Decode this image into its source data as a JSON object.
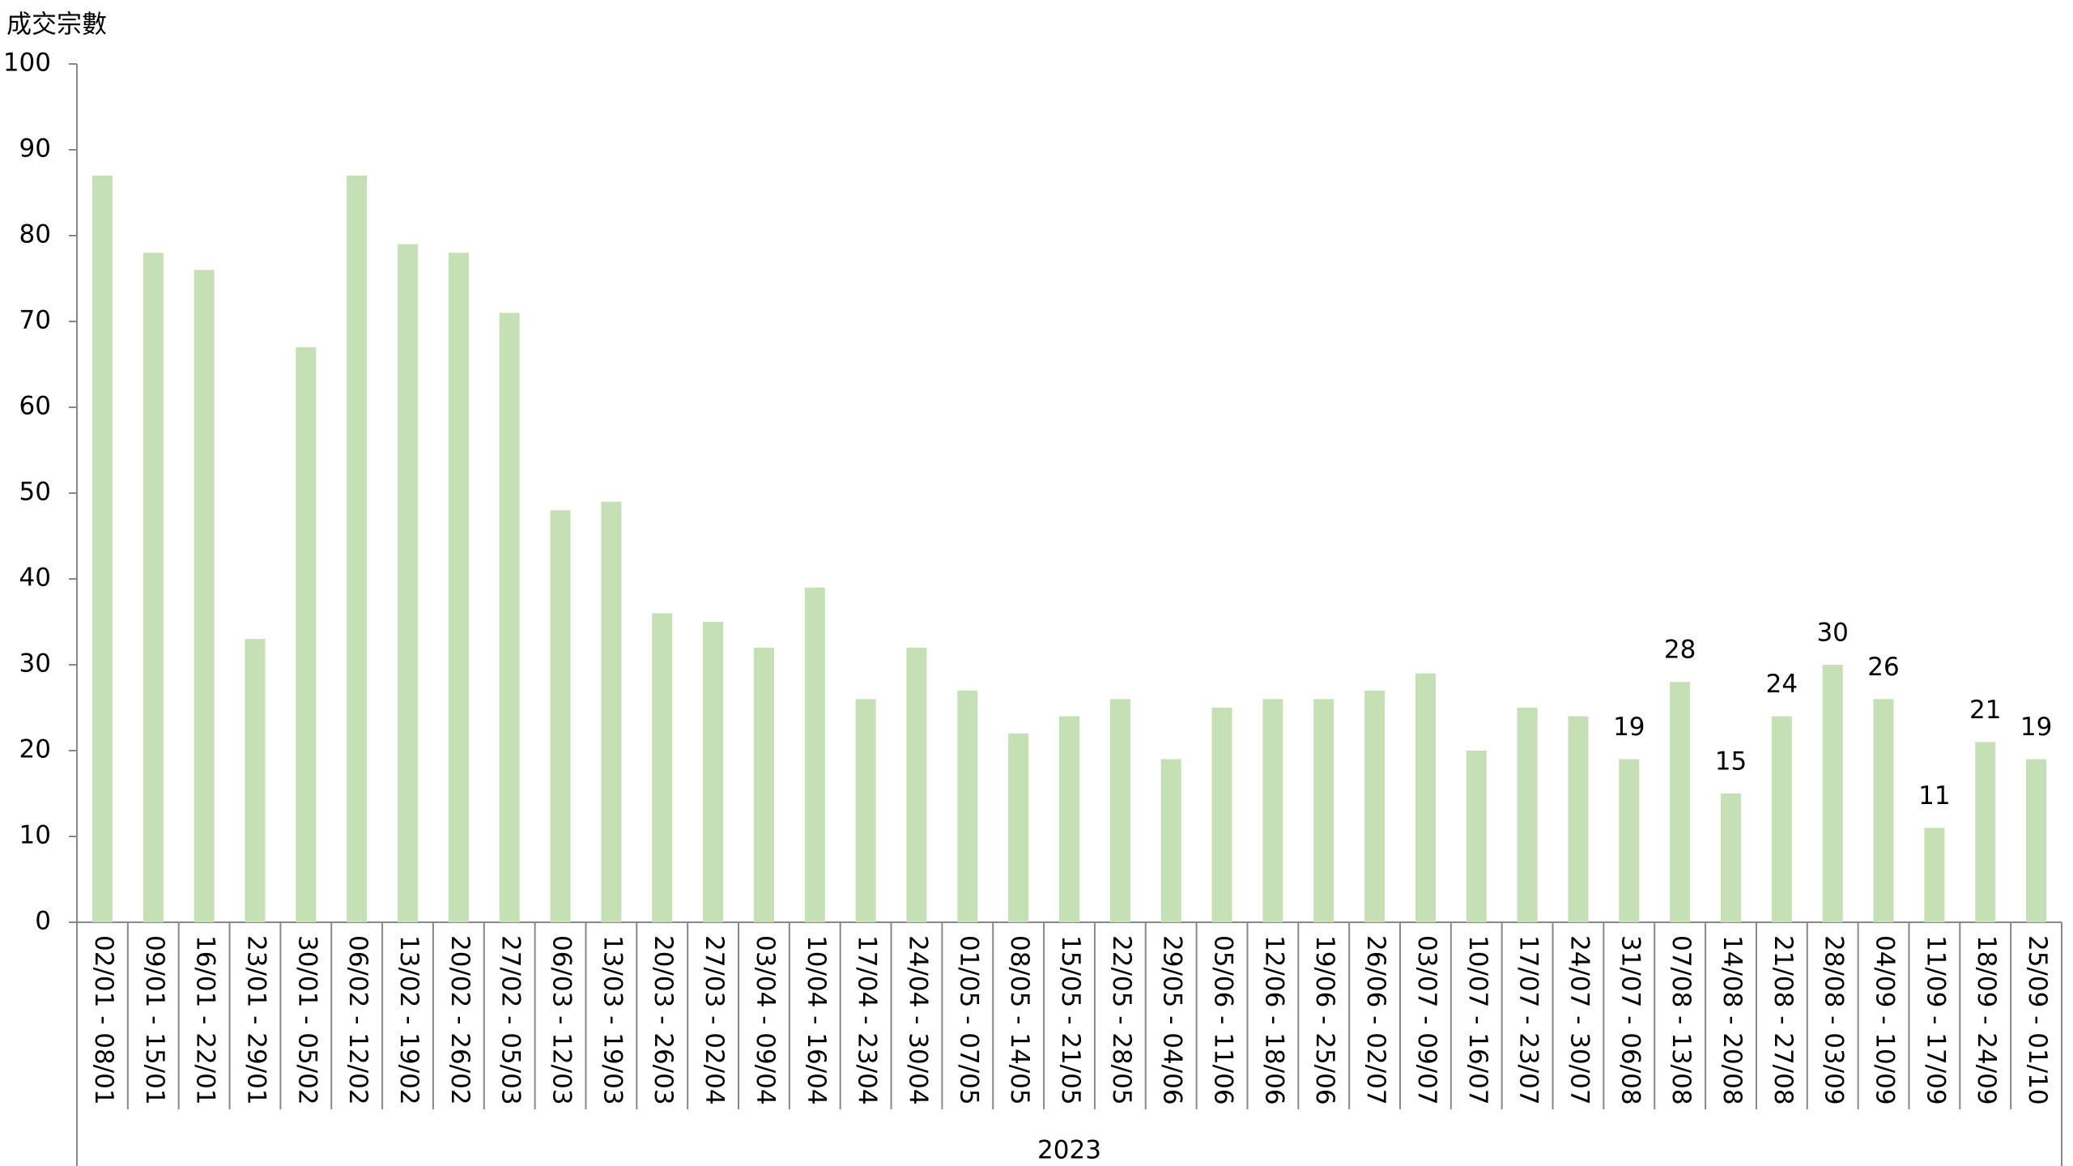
{
  "chart_data": {
    "type": "bar",
    "y_axis_label": "成交宗數",
    "x_group_label": "2023",
    "categories": [
      "02/01 - 08/01",
      "09/01 - 15/01",
      "16/01 - 22/01",
      "23/01 - 29/01",
      "30/01 - 05/02",
      "06/02 - 12/02",
      "13/02 - 19/02",
      "20/02 - 26/02",
      "27/02 - 05/03",
      "06/03 - 12/03",
      "13/03 - 19/03",
      "20/03 - 26/03",
      "27/03 - 02/04",
      "03/04 - 09/04",
      "10/04 - 16/04",
      "17/04 - 23/04",
      "24/04 - 30/04",
      "01/05 - 07/05",
      "08/05 - 14/05",
      "15/05 - 21/05",
      "22/05 - 28/05",
      "29/05 - 04/06",
      "05/06 - 11/06",
      "12/06 - 18/06",
      "19/06 - 25/06",
      "26/06 - 02/07",
      "03/07 - 09/07",
      "10/07 - 16/07",
      "17/07 - 23/07",
      "24/07 - 30/07",
      "31/07 - 06/08",
      "07/08 - 13/08",
      "14/08 - 20/08",
      "21/08 - 27/08",
      "28/08 - 03/09",
      "04/09 - 10/09",
      "11/09 - 17/09",
      "18/09 - 24/09",
      "25/09 - 01/10"
    ],
    "values": [
      87,
      78,
      76,
      33,
      67,
      87,
      79,
      78,
      71,
      48,
      49,
      36,
      35,
      32,
      39,
      26,
      32,
      27,
      22,
      24,
      26,
      19,
      25,
      26,
      26,
      27,
      29,
      20,
      25,
      24,
      19,
      28,
      15,
      24,
      30,
      26,
      11,
      21,
      19
    ],
    "value_labels_shown": [
      false,
      false,
      false,
      false,
      false,
      false,
      false,
      false,
      false,
      false,
      false,
      false,
      false,
      false,
      false,
      false,
      false,
      false,
      false,
      false,
      false,
      false,
      false,
      false,
      false,
      false,
      false,
      false,
      false,
      false,
      true,
      true,
      true,
      true,
      true,
      true,
      true,
      true,
      true
    ],
    "color": "#c5e0b4",
    "ylim": [
      0,
      100
    ],
    "yticks": [
      0,
      10,
      20,
      30,
      40,
      50,
      60,
      70,
      80,
      90,
      100
    ],
    "grid": false
  }
}
